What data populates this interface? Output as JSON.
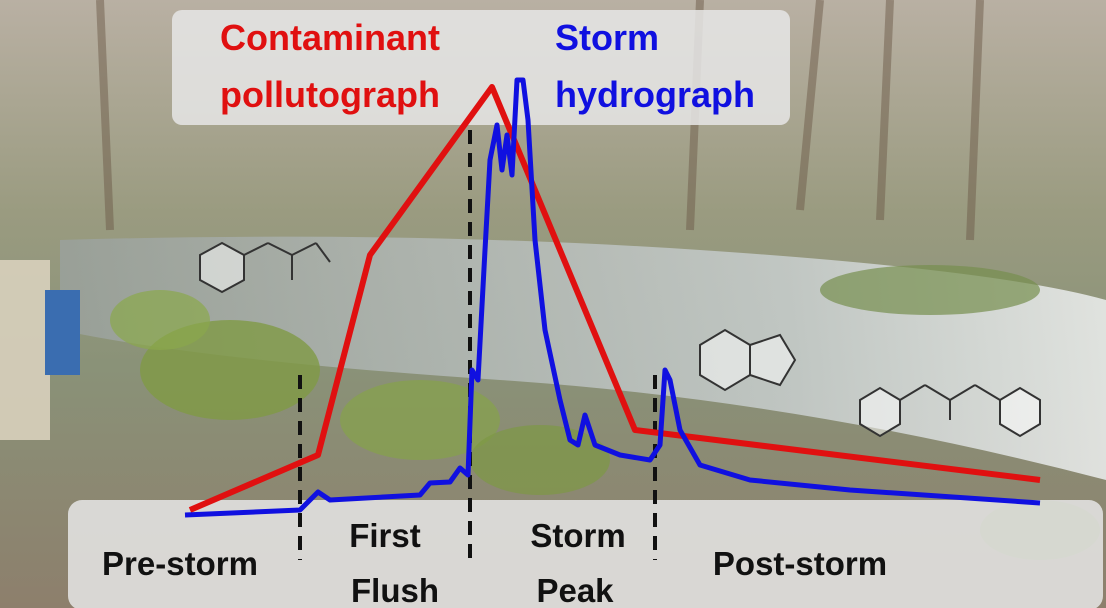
{
  "header": {
    "pollutograph": {
      "line1": "Contaminant",
      "line2": "pollutograph"
    },
    "hydrograph": {
      "line1": "Storm",
      "line2": "hydrograph"
    }
  },
  "phases": [
    {
      "lines": [
        "Pre-storm"
      ]
    },
    {
      "lines": [
        "First",
        "Flush"
      ]
    },
    {
      "lines": [
        "Storm",
        "Peak"
      ]
    },
    {
      "lines": [
        "Post-storm"
      ]
    }
  ]
}
